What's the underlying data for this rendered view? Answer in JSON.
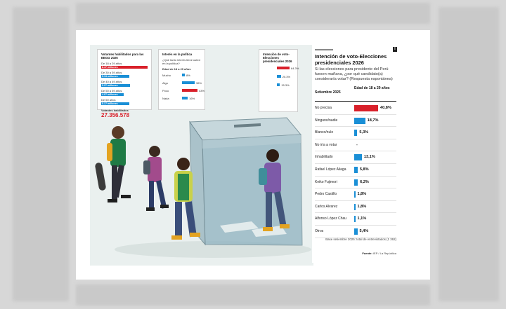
{
  "colors": {
    "red": "#d9202a",
    "blue": "#1a8fd6",
    "page": "#ffffff",
    "scene": "#eaf0ef"
  },
  "mini_voters": {
    "title": "Votantes habilitados para las EEGG 2026",
    "rows": [
      {
        "label": "De 18 a 29 años",
        "value": "8.47 millones",
        "color": "#d9202a",
        "fraction": 1.0
      },
      {
        "label": "De 30 a 39 años",
        "value": "5.13 millones",
        "color": "#1a8fd6",
        "fraction": 0.6
      },
      {
        "label": "De 40 a 49 años",
        "value": "5.27 millones",
        "color": "#1a8fd6",
        "fraction": 0.62
      },
      {
        "label": "De 50 a 59 años",
        "value": "4.07 millones",
        "color": "#1a8fd6",
        "fraction": 0.48
      },
      {
        "label": "De 60 años",
        "value": "5.17 millones",
        "color": "#1a8fd6",
        "fraction": 0.61
      }
    ],
    "total_label": "Votantes habilitados",
    "total_value": "27.356.578"
  },
  "mini_interest": {
    "title": "Interés en la política",
    "question": "¿Qué tanto interés tiene usted en la política?",
    "header": "Edad de 18 a 29 años",
    "rows": [
      {
        "label": "Mucho",
        "value": "8%",
        "fraction": 0.18
      },
      {
        "label": "Algo",
        "value": "36%",
        "fraction": 0.82
      },
      {
        "label": "Poco",
        "value": "43%",
        "fraction": 1.0,
        "color": "#d9202a"
      },
      {
        "label": "Nada",
        "value": "16%",
        "fraction": 0.37
      }
    ]
  },
  "mini_small": {
    "title": "Intención de voto-Elecciones presidenciales 2026",
    "rows": [
      {
        "value": "64.3%",
        "fraction": 1.0,
        "color": "#d9202a"
      },
      {
        "value": "20.3%",
        "fraction": 0.32
      },
      {
        "value": "15.3%",
        "fraction": 0.24
      }
    ]
  },
  "panel": {
    "corner": "I",
    "title": "Intención de voto-Elecciones presidenciales 2026",
    "question": "Si las elecciones para presidente del Perú fuesen mañana, ¿por qué candidato(a) consideraría votar? (Respuesta espontánea)",
    "col_left": "Setiembre 2025",
    "col_right": "Edad de 18 a 29 años",
    "base": "Base setiembre 2025: total de entrevistados (1 262)",
    "source_prefix": "Fuente:",
    "source": "IEP / La República"
  },
  "chart_data": {
    "type": "bar",
    "title": "Intención de voto-Elecciones presidenciales 2026",
    "subtitle": "Si las elecciones para presidente del Perú fuesen mañana, ¿por qué candidato(a) consideraría votar? (Respuesta espontánea)",
    "xlabel": "",
    "ylabel": "Edad de 18 a 29 años",
    "categories": [
      "No precisa",
      "Ninguno/nadie",
      "Blanco/nulo",
      "No iría a votar",
      "Inhabilitado",
      "Rafael López Aliaga",
      "Keiko Fujimori",
      "Pedro Castillo",
      "Carlos Alvarez",
      "Alfonso López Chau",
      "Otros"
    ],
    "values": [
      40.8,
      18.7,
      5.3,
      0,
      13.1,
      5.8,
      6.2,
      1.8,
      1.8,
      1.1,
      5.4
    ],
    "value_labels": [
      "40,8",
      "18,7",
      "5,3",
      "-",
      "13,1",
      "5,8",
      "6,2",
      "1,8",
      "1,8",
      "1,1",
      "5,4"
    ],
    "unit": "%",
    "highlight_index": 0,
    "xlim": [
      0,
      40.8
    ]
  }
}
